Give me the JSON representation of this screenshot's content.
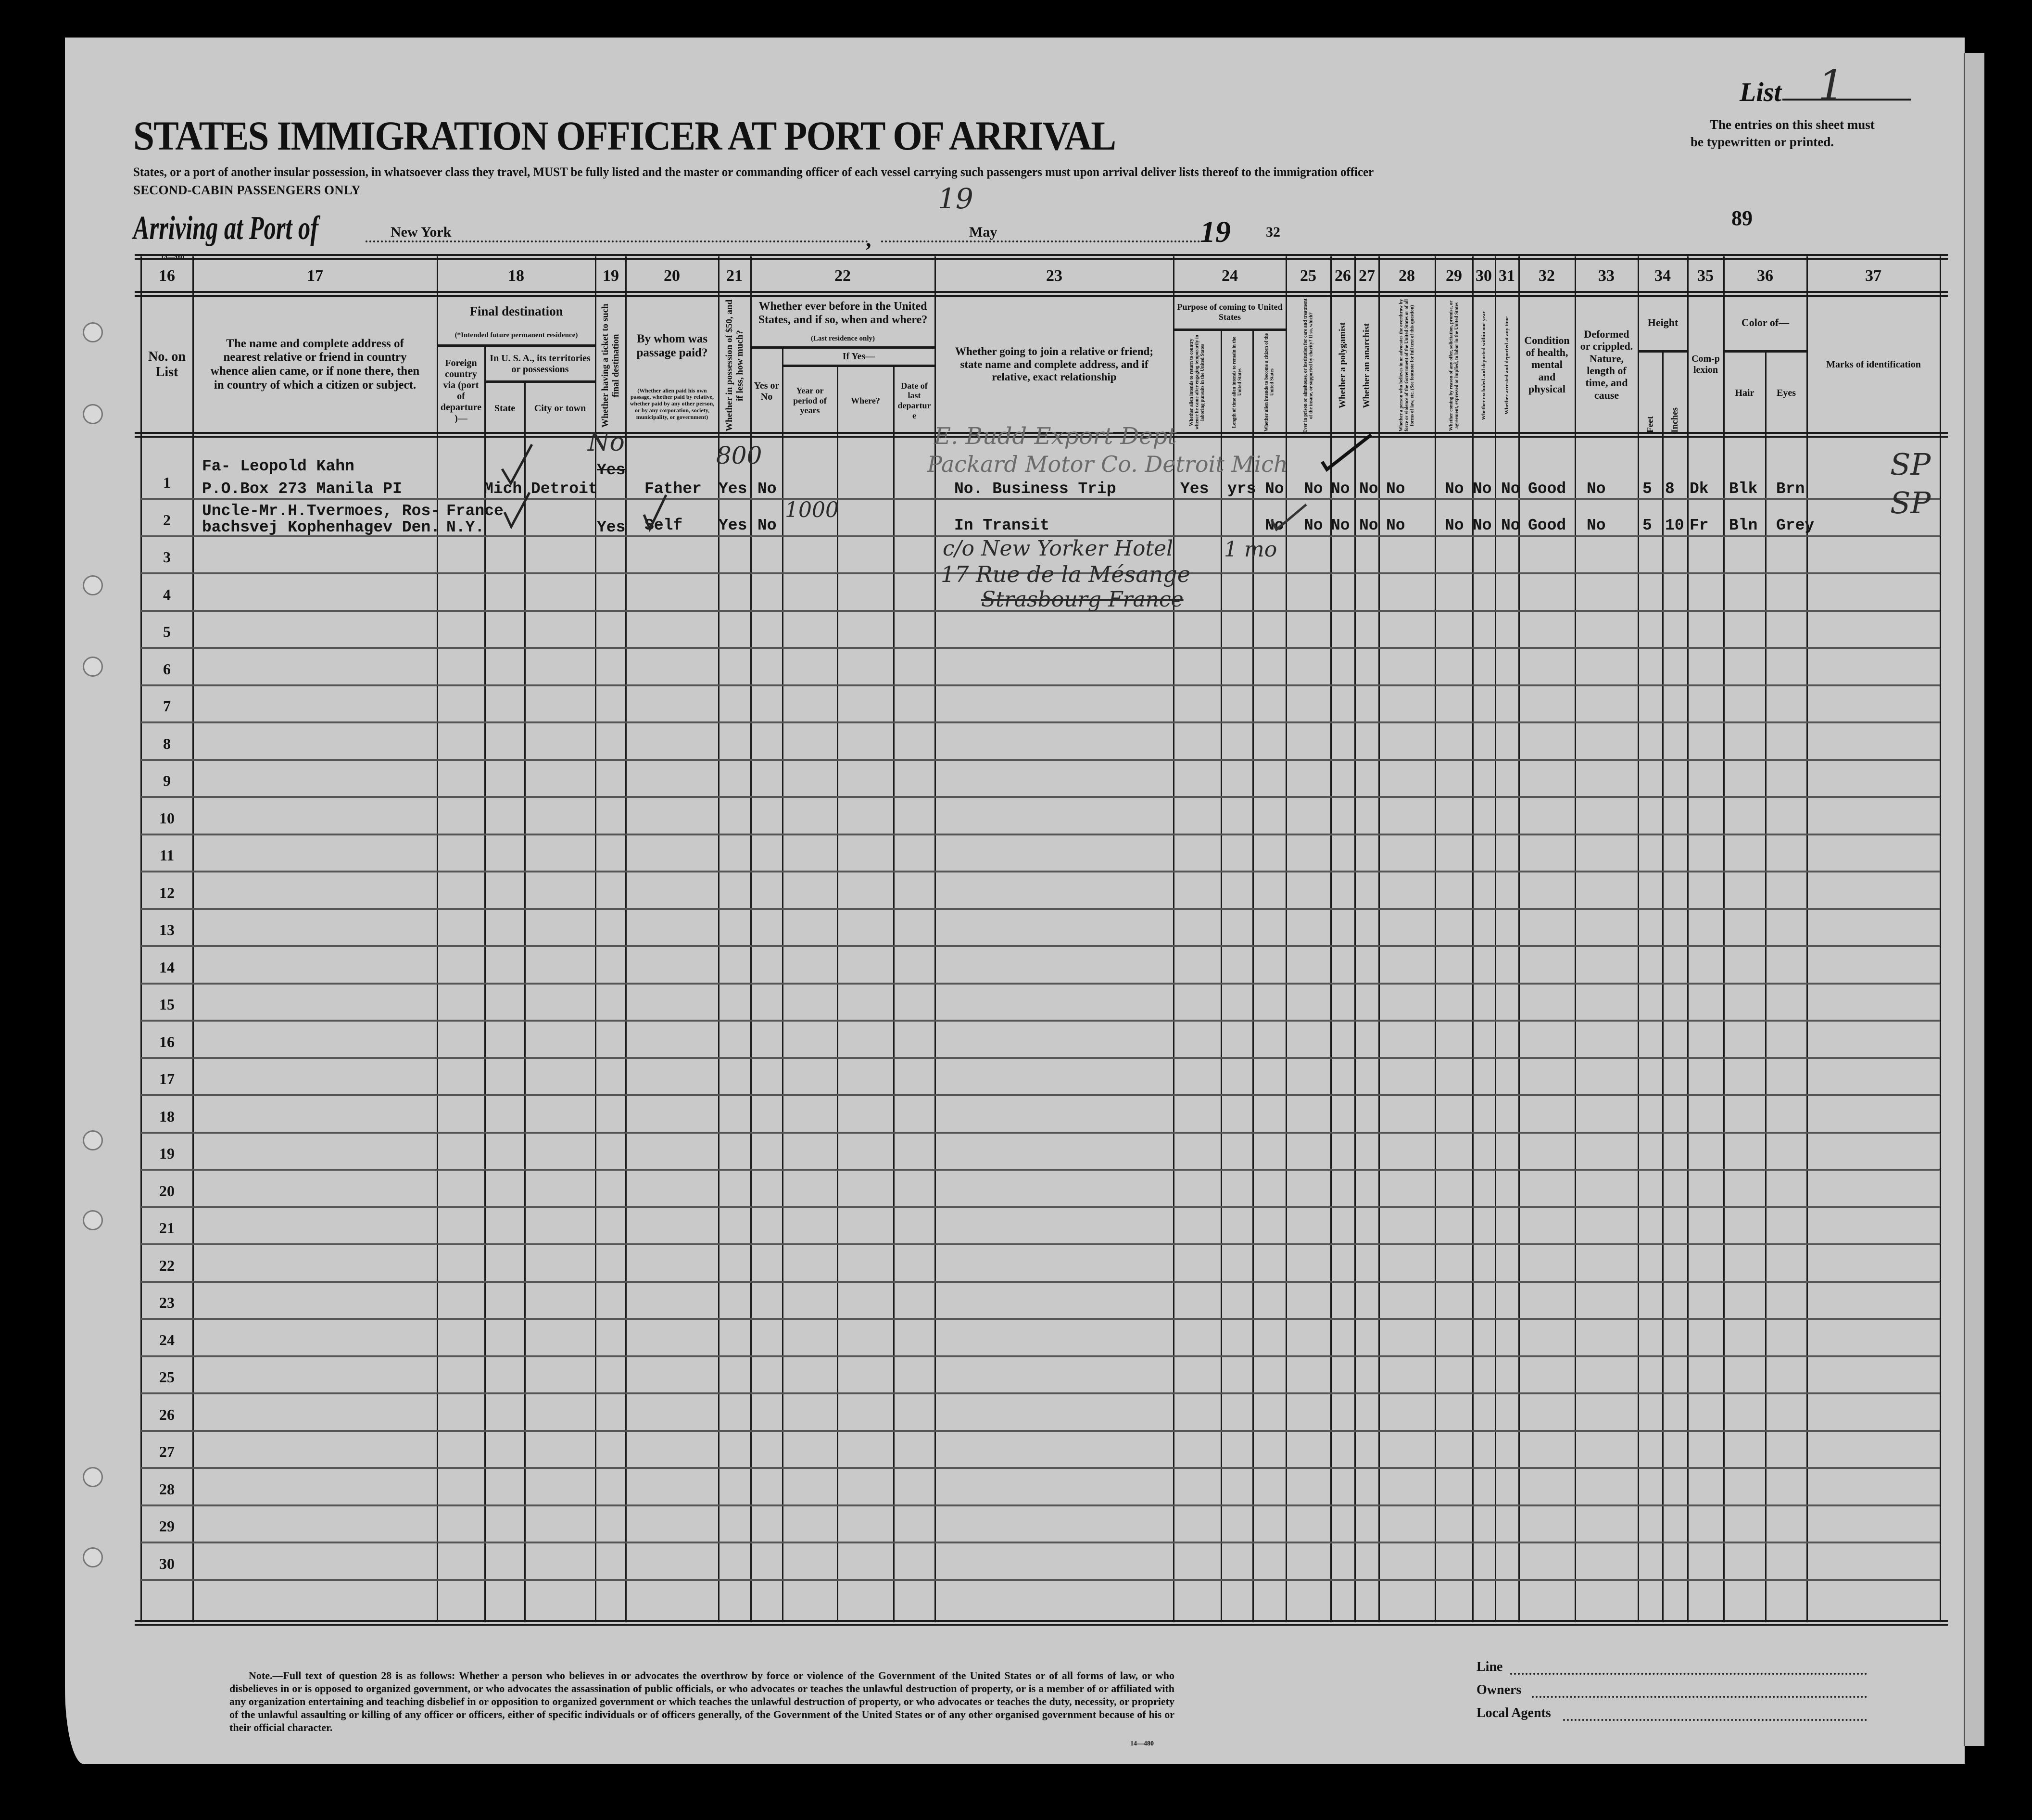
{
  "header": {
    "list_label": "List",
    "list_number": "1",
    "title": "STATES IMMIGRATION OFFICER AT PORT OF ARRIVAL",
    "subtitle": "States, or a port of another insular possession, in whatsoever class they travel, MUST be fully listed and the master or commanding officer of each vessel carrying such passengers must upon arrival deliver lists thereof to the immigration officer",
    "class_note": "SECOND-CABIN PASSENGERS ONLY",
    "entries_note_1": "The entries on this sheet must",
    "entries_note_2": "be typewritten or printed.",
    "arriving_label": "Arriving at Port of",
    "port": "New York",
    "date_month": "May",
    "date_day": "19",
    "year_prefix": "19",
    "year_suffix": "32",
    "page_number": "89",
    "form_code": "14—480"
  },
  "column_numbers": [
    "16",
    "17",
    "18",
    "19",
    "20",
    "21",
    "22",
    "23",
    "24",
    "25",
    "26",
    "27",
    "28",
    "29",
    "30",
    "31",
    "32",
    "33",
    "34",
    "35",
    "36",
    "37"
  ],
  "columns": {
    "c16": "No. on List",
    "c17": "The name and complete address of nearest relative or friend in country whence alien came, or if none there, then in country of which a citizen or subject.",
    "c18_title": "Final destination",
    "c18_note": "(*Intended future permanent residence)",
    "c18_foreign": "Foreign country via (port of departure)—",
    "c18_usa": "In U. S. A., its territories or possessions",
    "c18_state": "State",
    "c18_city": "City or town",
    "c19": "Whether having a ticket to such final destination",
    "c20_title": "By whom was passage paid?",
    "c20_note": "(Whether alien paid his own passage, whether paid by relative, whether paid by any other person, or by any corporation, society, municipality, or government)",
    "c21": "Whether in possession of $50, and if less, how much?",
    "c22_title": "Whether ever before in the United States, and if so, when and where?",
    "c22_note": "(Last residence only)",
    "c22_yesno": "Yes or No",
    "c22_ifyes": "If Yes—",
    "c22_years": "Year or period of years",
    "c22_where": "Where?",
    "c22_date": "Date of last departure",
    "c23": "Whether going to join a relative or friend; state name and complete address, and if relative, exact relationship",
    "c24_title": "Purpose of coming to United States",
    "c24_a": "Whether alien intends to return to country whence he came after engaging temporarily in laboring pursuits in the United States",
    "c24_b": "Length of time alien intends to remain in the United States",
    "c24_c": "Whether alien intends to become a citizen of the United States",
    "c25": "Ever in prison or almshouse, or institution for care and treatment of the insane, or supported by charity? If so, which?",
    "c26": "Whether a polygamist",
    "c27": "Whether an anarchist",
    "c28": "Whether a person who believes in or advocates the overthrow by force or violence of the Government of the United States or of all forms of law, etc. (See footnote for full text of this question)",
    "c29": "Whether coming by reason of any offer, solicitation, promise, or agreement, expressed or implied, to labor in the United States",
    "c30": "Whether excluded and deported within one year",
    "c31": "Whether arrested and deported at any time",
    "c32": "Condition of health, mental and physical",
    "c33": "Deformed or crippled. Nature, length of time, and cause",
    "c34_title": "Height",
    "c34_feet": "Feet",
    "c34_inches": "Inches",
    "c35": "Com-plexion",
    "c36_title": "Color of—",
    "c36_hair": "Hair",
    "c36_eyes": "Eyes",
    "c37": "Marks of identification"
  },
  "row_numbers": [
    "1",
    "2",
    "3",
    "4",
    "5",
    "6",
    "7",
    "8",
    "9",
    "10",
    "11",
    "12",
    "13",
    "14",
    "15",
    "16",
    "17",
    "18",
    "19",
    "20",
    "21",
    "22",
    "23",
    "24",
    "25",
    "26",
    "27",
    "28",
    "29",
    "30"
  ],
  "rows": [
    {
      "relative": [
        "Fa- Leopold Kahn",
        "P.O.Box 273 Manila PI"
      ],
      "foreign_country": [
        "",
        ""
      ],
      "state": "Mich",
      "city": "Detroit",
      "ticket": [
        "Yes",
        ""
      ],
      "ticket_struck": true,
      "passage_paid_by": "Father",
      "possession_50": "Yes",
      "before_in_us": "No",
      "joining": "No. Business Trip",
      "purpose_return": "Yes",
      "length_of_stay": "yrs",
      "become_citizen": "No",
      "prison": "No",
      "polygamist": "No",
      "anarchist": "No",
      "q28": "No",
      "q29": "No",
      "q30": "No",
      "q31": "No",
      "health": "Good",
      "deformed": "No",
      "feet": "5",
      "inches": "8",
      "complexion": "Dk",
      "hair": "Blk",
      "eyes": "Brn"
    },
    {
      "relative": [
        "Uncle-Mr.H.Tvermoes, Ros-",
        "bachsvej Kophenhagev Den."
      ],
      "foreign_country": [
        "France",
        "N.Y."
      ],
      "state": "",
      "city": "",
      "ticket": [
        "",
        "Yes"
      ],
      "ticket_struck": false,
      "passage_paid_by": "Self",
      "possession_50": "Yes",
      "before_in_us": "No",
      "joining": "In Transit",
      "purpose_return": "",
      "length_of_stay": "",
      "become_citizen": "No",
      "prison": "No",
      "polygamist": "No",
      "anarchist": "No",
      "q28": "No",
      "q29": "No",
      "q30": "No",
      "q31": "No",
      "health": "Good",
      "deformed": "No",
      "feet": "5",
      "inches": "10",
      "complexion": "Fr",
      "hair": "Bln",
      "eyes": "Grey"
    }
  ],
  "handwritten": {
    "ticket_correction": "No",
    "amount_row1": "800",
    "amount_row2": "1000",
    "contact_row1_a": "E. Budd Export Dept",
    "contact_row1_b": "Packard Motor Co. Detroit Mich",
    "contact_row2_a": "c/o New Yorker Hotel",
    "contact_row2_b": "17 Rue de la Mésange",
    "contact_row2_c": "Strasbourg France",
    "length_row2": "1 mo",
    "mark_row1": "SP",
    "mark_row2": "SP"
  },
  "footer": {
    "note": "Note.—Full text of question 28 is as follows: Whether a person who believes in or advocates the overthrow by force or violence of the Government of the United States or of all forms of law, or who disbelieves in or is opposed to organized government, or who advocates the assassination of public officials, or who advocates or teaches the unlawful destruction of property, or is a member of or affiliated with any organization entertaining and teaching disbelief in or opposition to organized government or which teaches the unlawful destruction of property, or who advocates or teaches the duty, necessity, or propriety of the unlawful assaulting or killing of any officer or officers, either of specific individuals or of officers generally, of the Government of the United States or of any other organised government because of his or their official character.",
    "form_code": "14—480",
    "line_label": "Line",
    "owners_label": "Owners",
    "agents_label": "Local Agents"
  }
}
